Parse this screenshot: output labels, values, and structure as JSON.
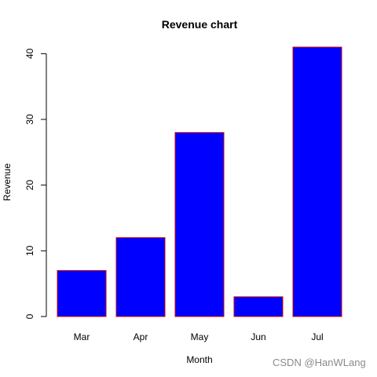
{
  "chart_data": {
    "type": "bar",
    "title": "Revenue chart",
    "xlabel": "Month",
    "ylabel": "Revenue",
    "categories": [
      "Mar",
      "Apr",
      "May",
      "Jun",
      "Jul"
    ],
    "values": [
      7,
      12,
      28,
      3,
      41
    ],
    "ylim": [
      0,
      41
    ],
    "yticks": [
      0,
      10,
      20,
      30,
      40
    ],
    "grid": false,
    "bar_fill": "#0000ff",
    "bar_border": "#cc0000"
  },
  "watermark": "CSDN @HanWLang"
}
